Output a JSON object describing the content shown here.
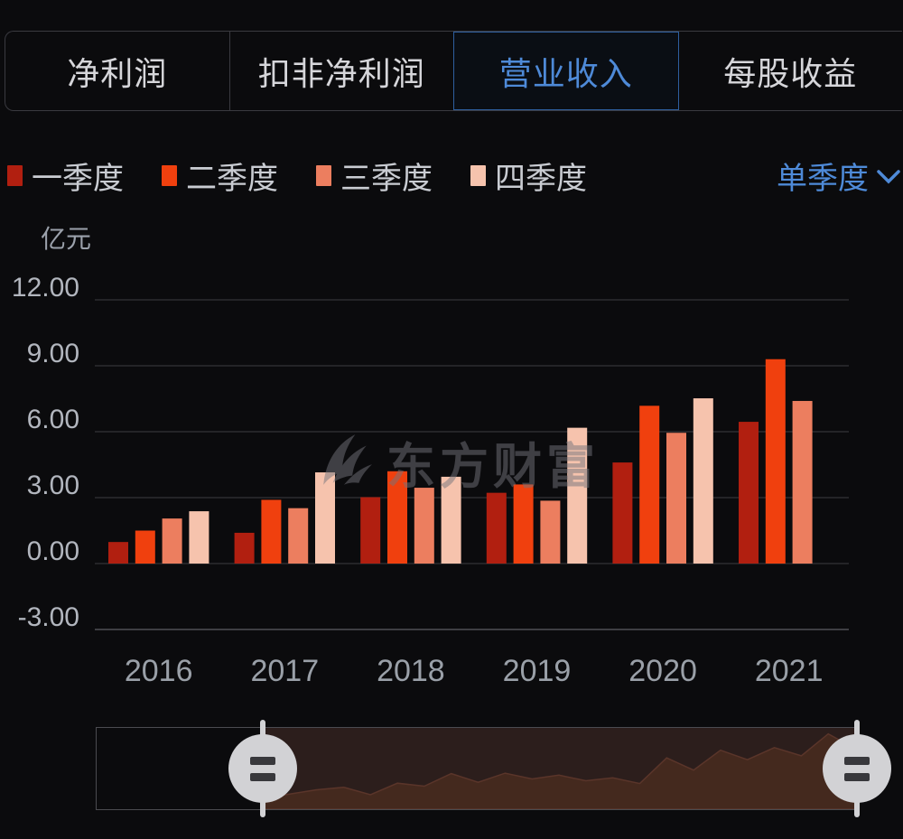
{
  "tabs": {
    "items": [
      {
        "label": "净利润",
        "selected": false
      },
      {
        "label": "扣非净利润",
        "selected": false
      },
      {
        "label": "营业收入",
        "selected": true
      },
      {
        "label": "每股收益",
        "selected": false
      }
    ]
  },
  "period_selector": {
    "label": "单季度",
    "icon": "chevron-down-icon"
  },
  "watermark": {
    "text": "东方财富",
    "icon": "eastmoney-logo"
  },
  "colors": {
    "accent_blue": "#4e8ad8",
    "q1": "#b11f10",
    "q2": "#f0400e",
    "q3": "#ec7e5f",
    "q4": "#f6c3ad",
    "grid": "#2c2c30",
    "axis_line": "#3e3e43",
    "slider_window_fill": "#2c1e1c",
    "slider_preview_fill": "#44291e"
  },
  "chart_data": {
    "type": "bar",
    "title": "营业收入(单季度)",
    "unit_label": "亿元",
    "xlabel": "",
    "ylabel": "亿元",
    "categories": [
      "2016",
      "2017",
      "2018",
      "2019",
      "2020",
      "2021"
    ],
    "series": [
      {
        "name": "一季度",
        "color": "#b11f10",
        "values": [
          0.98,
          1.4,
          3.02,
          3.22,
          4.6,
          6.45
        ]
      },
      {
        "name": "二季度",
        "color": "#f0400e",
        "values": [
          1.5,
          2.9,
          4.2,
          3.6,
          7.18,
          9.3
        ]
      },
      {
        "name": "三季度",
        "color": "#ec7e5f",
        "values": [
          2.05,
          2.52,
          3.45,
          2.86,
          5.95,
          7.4
        ]
      },
      {
        "name": "四季度",
        "color": "#f6c3ad",
        "values": [
          2.38,
          4.15,
          3.95,
          6.18,
          7.52,
          null
        ]
      }
    ],
    "ylim": [
      -3,
      12
    ],
    "ytick_values": [
      12,
      9,
      6,
      3,
      0,
      -3
    ],
    "ytick_labels": [
      "12.00",
      "9.00",
      "6.00",
      "3.00",
      "0.00",
      "-3.00"
    ],
    "grid": "horizontal",
    "legend_position": "top"
  }
}
